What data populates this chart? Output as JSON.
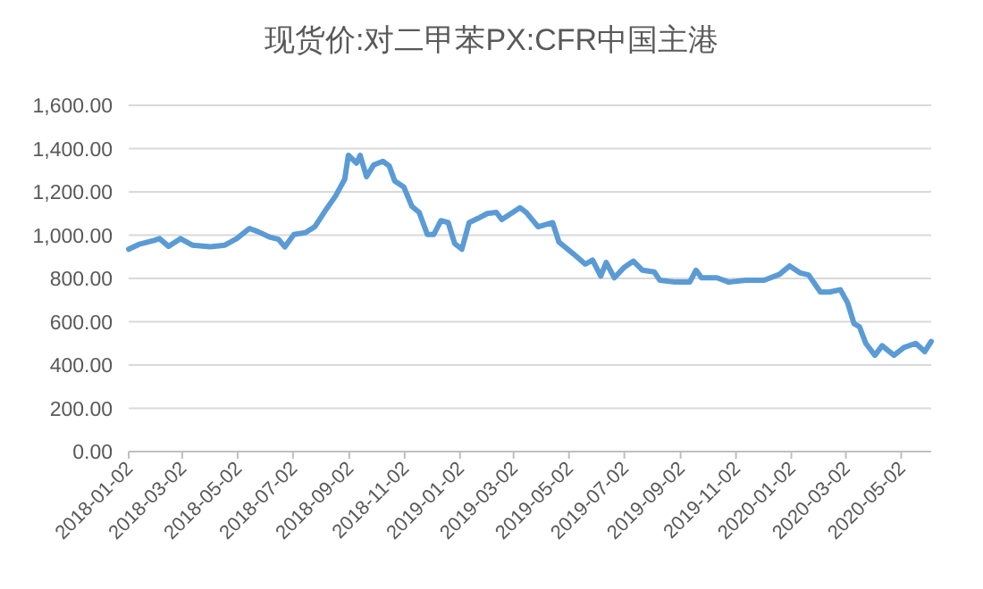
{
  "chart_data": {
    "type": "line",
    "title": "现货价:对二甲苯PX:CFR中国主港",
    "x": [
      "2018-01-02",
      "2018-01-13",
      "2018-01-30",
      "2018-02-05",
      "2018-02-15",
      "2018-02-28",
      "2018-03-13",
      "2018-04-02",
      "2018-04-18",
      "2018-05-01",
      "2018-05-15",
      "2018-05-24",
      "2018-06-07",
      "2018-06-16",
      "2018-06-23",
      "2018-07-03",
      "2018-07-16",
      "2018-07-26",
      "2018-08-08",
      "2018-08-18",
      "2018-08-28",
      "2018-09-01",
      "2018-09-10",
      "2018-09-14",
      "2018-09-21",
      "2018-09-29",
      "2018-10-09",
      "2018-10-16",
      "2018-10-22",
      "2018-11-01",
      "2018-11-10",
      "2018-11-18",
      "2018-11-27",
      "2018-12-04",
      "2018-12-12",
      "2018-12-20",
      "2018-12-27",
      "2019-01-04",
      "2019-01-12",
      "2019-01-22",
      "2019-02-01",
      "2019-02-11",
      "2019-02-17",
      "2019-03-09",
      "2019-03-16",
      "2019-03-29",
      "2019-04-14",
      "2019-04-21",
      "2019-05-07",
      "2019-05-20",
      "2019-05-28",
      "2019-06-06",
      "2019-06-12",
      "2019-06-21",
      "2019-07-02",
      "2019-07-12",
      "2019-07-22",
      "2019-08-04",
      "2019-08-10",
      "2019-08-27",
      "2019-09-12",
      "2019-09-19",
      "2019-09-25",
      "2019-10-12",
      "2019-10-25",
      "2019-11-13",
      "2019-12-03",
      "2019-12-20",
      "2019-12-31",
      "2020-01-12",
      "2020-01-21",
      "2020-02-03",
      "2020-02-13",
      "2020-02-25",
      "2020-03-04",
      "2020-03-11",
      "2020-03-17",
      "2020-03-24",
      "2020-04-03",
      "2020-04-11",
      "2020-04-24",
      "2020-05-05",
      "2020-05-18",
      "2020-05-28",
      "2020-06-04"
    ],
    "series": [
      {
        "color": "#5b9bd5",
        "values": [
          935,
          957,
          976,
          984,
          948,
          984,
          954,
          946,
          954,
          984,
          1031,
          1017,
          990,
          981,
          946,
          1003,
          1012,
          1039,
          1122,
          1182,
          1259,
          1369,
          1333,
          1369,
          1270,
          1325,
          1341,
          1320,
          1251,
          1223,
          1133,
          1105,
          1003,
          1003,
          1067,
          1058,
          962,
          935,
          1058,
          1078,
          1100,
          1105,
          1072,
          1127,
          1105,
          1039,
          1058,
          968,
          913,
          866,
          885,
          811,
          874,
          803,
          852,
          880,
          838,
          830,
          792,
          783,
          783,
          838,
          803,
          803,
          783,
          792,
          792,
          819,
          858,
          825,
          816,
          737,
          737,
          748,
          687,
          591,
          577,
          500,
          445,
          489,
          445,
          481,
          500,
          462,
          509
        ]
      }
    ],
    "xlim": [
      "2018-01-02",
      "2020-06-04"
    ],
    "xticks": [
      "2018-01-02",
      "2018-03-02",
      "2018-05-02",
      "2018-07-02",
      "2018-09-02",
      "2018-11-02",
      "2019-01-02",
      "2019-03-02",
      "2019-05-02",
      "2019-07-02",
      "2019-09-02",
      "2019-11-02",
      "2020-01-02",
      "2020-03-02",
      "2020-05-02"
    ],
    "ylim": [
      0,
      1600
    ],
    "yticks": [
      {
        "value": 0,
        "label": "0.00"
      },
      {
        "value": 200,
        "label": "200.00"
      },
      {
        "value": 400,
        "label": "400.00"
      },
      {
        "value": 600,
        "label": "600.00"
      },
      {
        "value": 800,
        "label": "800.00"
      },
      {
        "value": 1000,
        "label": "1,000.00"
      },
      {
        "value": 1200,
        "label": "1,200.00"
      },
      {
        "value": 1400,
        "label": "1,400.00"
      },
      {
        "value": 1600,
        "label": "1,600.00"
      }
    ],
    "grid": "y"
  }
}
